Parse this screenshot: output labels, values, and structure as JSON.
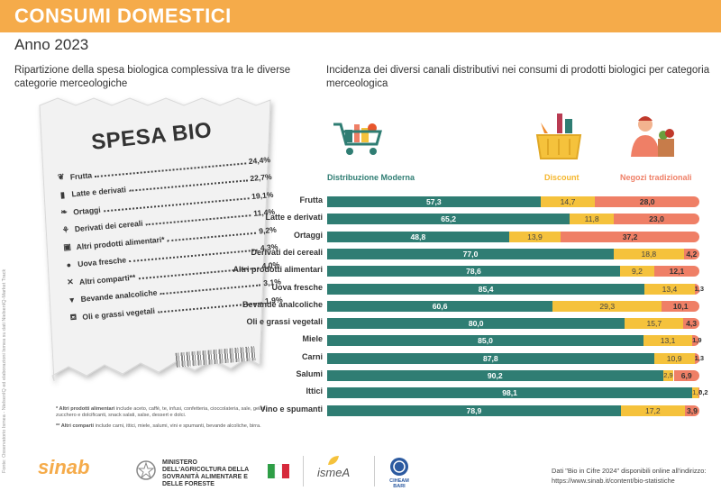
{
  "header": {
    "title": "CONSUMI DOMESTICI",
    "year": "Anno 2023"
  },
  "left_heading": "Ripartizione della spesa biologica complessiva tra le diverse categorie merceologiche",
  "right_heading": "Incidenza dei diversi canali distributivi nei consumi di prodotti biologici per categoria merceologica",
  "receipt": {
    "title": "SPESA BIO",
    "items": [
      {
        "label": "Frutta",
        "value": "24,4%",
        "icon": "fruit-icon"
      },
      {
        "label": "Latte e derivati",
        "value": "22,7%",
        "icon": "milk-icon"
      },
      {
        "label": "Ortaggi",
        "value": "19,1%",
        "icon": "vegetables-icon"
      },
      {
        "label": "Derivati dei cereali",
        "value": "11,4%",
        "icon": "wheat-icon"
      },
      {
        "label": "Altri prodotti alimentari*",
        "value": "9,2%",
        "icon": "jar-icon"
      },
      {
        "label": "Uova fresche",
        "value": "4,3%",
        "icon": "egg-icon"
      },
      {
        "label": "Altri comparti**",
        "value": "4,0%",
        "icon": "cutlery-icon"
      },
      {
        "label": "Bevande analcoliche",
        "value": "3,1%",
        "icon": "cup-icon"
      },
      {
        "label": "Oli e grassi vegetali",
        "value": "1,9%",
        "icon": "oil-icon"
      }
    ]
  },
  "notes": {
    "note1_title": "* Altri prodotti alimentari",
    "note1_text": " include aceto, caffè, te, infusi, confetteria, cioccolateria, sale, gelati, zucchero e dolcificanti, snack salati, salse, dessert e dolci.",
    "note2_title": "** Altri comparti",
    "note2_text": " include carni, ittici, miele, salumi, vini e spumanti, bevande alcoliche, birra."
  },
  "side_source": "Fonte: Osservatorio Ismea - NielsenIQ ed elaborazioni Ismea su dati NielsenIQ-Market Track",
  "chart_data": {
    "type": "bar",
    "orientation": "horizontal",
    "stacked": true,
    "title": "Incidenza dei diversi canali distributivi nei consumi di prodotti biologici per categoria merceologica",
    "categories": [
      "Frutta",
      "Latte e derivati",
      "Ortaggi",
      "Derivati dei cereali",
      "Altri prodotti alimentari",
      "Uova fresche",
      "Bevande analcoliche",
      "Oli e grassi vegetali",
      "Miele",
      "Carni",
      "Salumi",
      "Ittici",
      "Vino e spumanti"
    ],
    "series": [
      {
        "name": "Distribuzione Moderna",
        "color": "#2f7d73",
        "values": [
          57.3,
          65.2,
          48.8,
          77.0,
          78.6,
          85.4,
          60.6,
          80.0,
          85.0,
          87.8,
          90.2,
          98.1,
          78.9
        ],
        "labels": [
          "57,3",
          "65,2",
          "48,8",
          "77,0",
          "78,6",
          "85,4",
          "60,6",
          "80,0",
          "85,0",
          "87,8",
          "90,2",
          "98,1",
          "78,9"
        ]
      },
      {
        "name": "Discount",
        "color": "#f5c23c",
        "values": [
          14.7,
          11.8,
          13.9,
          18.8,
          9.2,
          13.4,
          29.3,
          15.7,
          13.1,
          10.9,
          2.9,
          1.7,
          17.2
        ],
        "labels": [
          "14,7",
          "11,8",
          "13,9",
          "18,8",
          "9,2",
          "13,4",
          "29,3",
          "15,7",
          "13,1",
          "10,9",
          "2,9",
          "1,7",
          "17,2"
        ]
      },
      {
        "name": "Negozi tradizionali",
        "color": "#ef7f66",
        "values": [
          28.0,
          23.0,
          37.2,
          4.2,
          12.1,
          1.3,
          10.1,
          4.3,
          1.9,
          1.3,
          6.9,
          0.2,
          3.9
        ],
        "labels": [
          "28,0",
          "23,0",
          "37,2",
          "4,2",
          "12,1",
          "1,3",
          "10,1",
          "4,3",
          "1,9",
          "1,3",
          "6,9",
          "0,2",
          "3,9"
        ]
      }
    ],
    "xlim": [
      0,
      100
    ],
    "unit": "%"
  },
  "footer": {
    "sinab": "sinab",
    "ministry": "MINISTERO DELL'AGRICOLTURA DELLA SOVRANITÀ ALIMENTARE E DELLE FORESTE",
    "ismea": "ismeA",
    "ciheam": "CIHEAM BARI",
    "note_line1": "Dati \"Bio in Cifre 2024\" disponibili online all'indirizzo:",
    "note_line2": "https://www.sinab.it/content/bio-statistiche"
  },
  "colors": {
    "accent": "#f5ab4a",
    "dm": "#2f7d73",
    "discount": "#f5c23c",
    "traditional": "#ef7f66"
  }
}
